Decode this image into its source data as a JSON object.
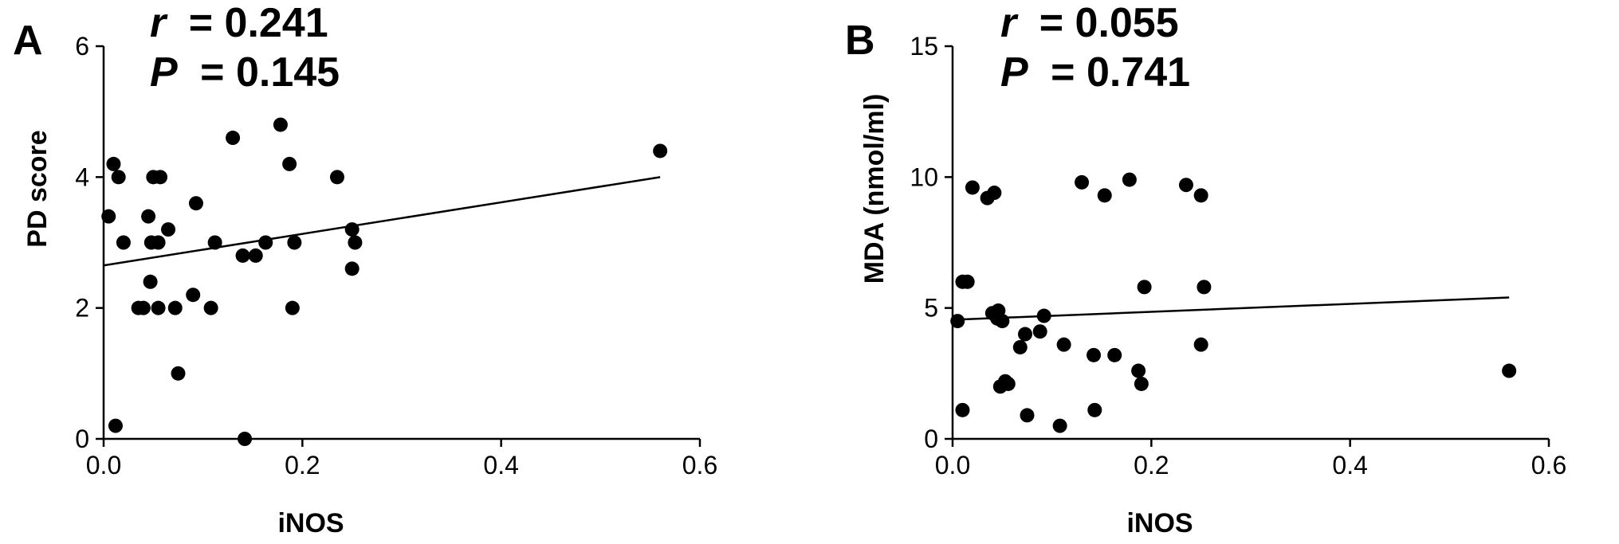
{
  "chart_data": [
    {
      "type": "scatter",
      "panel_label": "A",
      "stat_r_label": "r",
      "stat_r_value": "= 0.241",
      "stat_p_label": "P",
      "stat_p_value": "= 0.145",
      "xlabel": "iNOS",
      "ylabel": "PD score",
      "xlim": [
        0,
        0.6
      ],
      "ylim": [
        0,
        6
      ],
      "xticks": [
        "0.0",
        "0.2",
        "0.4",
        "0.6"
      ],
      "yticks": [
        "0",
        "2",
        "4",
        "6"
      ],
      "xtick_values": [
        0,
        0.2,
        0.4,
        0.6
      ],
      "ytick_values": [
        0,
        2,
        4,
        6
      ],
      "grid": false,
      "fit_line": {
        "x": [
          0,
          0.56
        ],
        "y": [
          2.65,
          4.0
        ]
      },
      "points": [
        {
          "x": 0.005,
          "y": 3.4
        },
        {
          "x": 0.01,
          "y": 4.2
        },
        {
          "x": 0.012,
          "y": 0.2
        },
        {
          "x": 0.015,
          "y": 4.0
        },
        {
          "x": 0.02,
          "y": 3.0
        },
        {
          "x": 0.035,
          "y": 2.0
        },
        {
          "x": 0.04,
          "y": 2.0
        },
        {
          "x": 0.045,
          "y": 3.4
        },
        {
          "x": 0.047,
          "y": 2.4
        },
        {
          "x": 0.048,
          "y": 3.0
        },
        {
          "x": 0.05,
          "y": 4.0
        },
        {
          "x": 0.055,
          "y": 3.0
        },
        {
          "x": 0.055,
          "y": 2.0
        },
        {
          "x": 0.057,
          "y": 4.0
        },
        {
          "x": 0.065,
          "y": 3.2
        },
        {
          "x": 0.072,
          "y": 2.0
        },
        {
          "x": 0.075,
          "y": 1.0
        },
        {
          "x": 0.09,
          "y": 2.2
        },
        {
          "x": 0.093,
          "y": 3.6
        },
        {
          "x": 0.108,
          "y": 2.0
        },
        {
          "x": 0.112,
          "y": 3.0
        },
        {
          "x": 0.13,
          "y": 4.6
        },
        {
          "x": 0.14,
          "y": 2.8
        },
        {
          "x": 0.142,
          "y": 0.0
        },
        {
          "x": 0.153,
          "y": 2.8
        },
        {
          "x": 0.163,
          "y": 3.0
        },
        {
          "x": 0.178,
          "y": 4.8
        },
        {
          "x": 0.187,
          "y": 4.2
        },
        {
          "x": 0.19,
          "y": 2.0
        },
        {
          "x": 0.192,
          "y": 3.0
        },
        {
          "x": 0.235,
          "y": 4.0
        },
        {
          "x": 0.25,
          "y": 3.2
        },
        {
          "x": 0.25,
          "y": 2.6
        },
        {
          "x": 0.253,
          "y": 3.0
        },
        {
          "x": 0.56,
          "y": 4.4
        }
      ]
    },
    {
      "type": "scatter",
      "panel_label": "B",
      "stat_r_label": "r",
      "stat_r_value": "= 0.055",
      "stat_p_label": "P",
      "stat_p_value": "= 0.741",
      "xlabel": "iNOS",
      "ylabel": "MDA (nmol/ml)",
      "xlim": [
        0,
        0.6
      ],
      "ylim": [
        0,
        15
      ],
      "xticks": [
        "0.0",
        "0.2",
        "0.4",
        "0.6"
      ],
      "yticks": [
        "0",
        "5",
        "10",
        "15"
      ],
      "xtick_values": [
        0,
        0.2,
        0.4,
        0.6
      ],
      "ytick_values": [
        0,
        5,
        10,
        15
      ],
      "grid": false,
      "fit_line": {
        "x": [
          0,
          0.56
        ],
        "y": [
          4.55,
          5.4
        ]
      },
      "points": [
        {
          "x": 0.005,
          "y": 4.5
        },
        {
          "x": 0.01,
          "y": 6.0
        },
        {
          "x": 0.01,
          "y": 1.1
        },
        {
          "x": 0.015,
          "y": 6.0
        },
        {
          "x": 0.02,
          "y": 9.6
        },
        {
          "x": 0.035,
          "y": 9.2
        },
        {
          "x": 0.04,
          "y": 4.8
        },
        {
          "x": 0.042,
          "y": 9.4
        },
        {
          "x": 0.045,
          "y": 4.6
        },
        {
          "x": 0.046,
          "y": 4.9
        },
        {
          "x": 0.048,
          "y": 2.0
        },
        {
          "x": 0.05,
          "y": 4.5
        },
        {
          "x": 0.053,
          "y": 2.2
        },
        {
          "x": 0.056,
          "y": 2.1
        },
        {
          "x": 0.068,
          "y": 3.5
        },
        {
          "x": 0.073,
          "y": 4.0
        },
        {
          "x": 0.075,
          "y": 0.9
        },
        {
          "x": 0.088,
          "y": 4.1
        },
        {
          "x": 0.092,
          "y": 4.7
        },
        {
          "x": 0.108,
          "y": 0.5
        },
        {
          "x": 0.112,
          "y": 3.6
        },
        {
          "x": 0.13,
          "y": 9.8
        },
        {
          "x": 0.142,
          "y": 3.2
        },
        {
          "x": 0.143,
          "y": 1.1
        },
        {
          "x": 0.153,
          "y": 9.3
        },
        {
          "x": 0.163,
          "y": 3.2
        },
        {
          "x": 0.178,
          "y": 9.9
        },
        {
          "x": 0.187,
          "y": 2.6
        },
        {
          "x": 0.19,
          "y": 2.1
        },
        {
          "x": 0.193,
          "y": 5.8
        },
        {
          "x": 0.235,
          "y": 9.7
        },
        {
          "x": 0.25,
          "y": 9.3
        },
        {
          "x": 0.25,
          "y": 3.6
        },
        {
          "x": 0.253,
          "y": 5.8
        },
        {
          "x": 0.56,
          "y": 2.6
        }
      ]
    }
  ]
}
